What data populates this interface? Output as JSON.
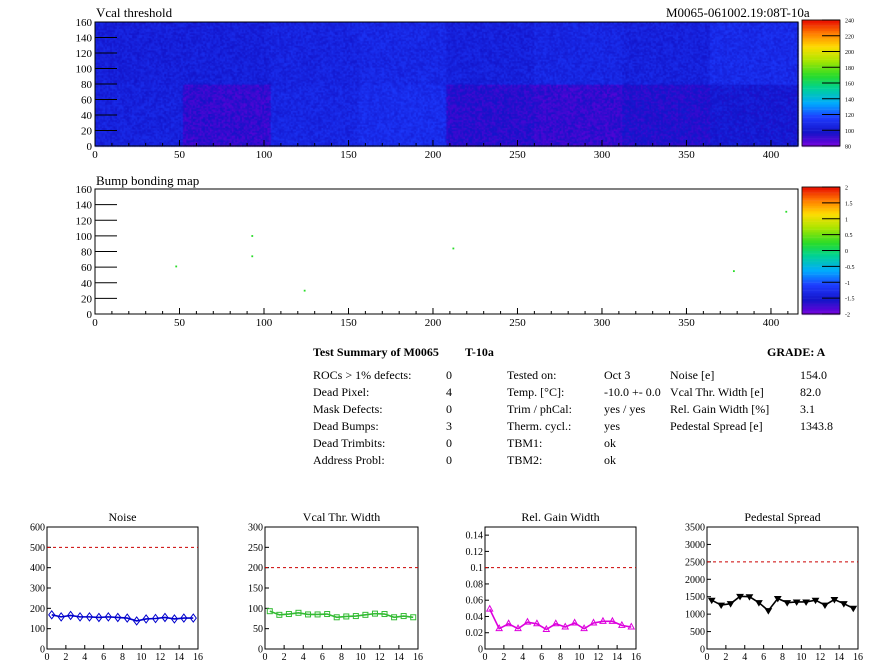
{
  "header": {
    "map1_title": "Vcal threshold",
    "module_id": "M0065-061002.19:08T-10a",
    "map2_title": "Bump bonding map"
  },
  "chart_data": [
    {
      "type": "heatmap",
      "title": "Vcal threshold",
      "xlim": [
        0,
        416
      ],
      "ylim": [
        0,
        160
      ],
      "x_ticks": [
        "0",
        "50",
        "100",
        "150",
        "200",
        "250",
        "300",
        "350",
        "400"
      ],
      "y_ticks": [
        "0",
        "20",
        "40",
        "60",
        "80",
        "100",
        "120",
        "140",
        "160"
      ],
      "z_range": [
        80,
        240
      ],
      "z_ticks": [
        "80",
        "100",
        "120",
        "140",
        "160",
        "180",
        "200",
        "220",
        "240"
      ],
      "dominant_value_range": [
        90,
        130
      ]
    },
    {
      "type": "heatmap",
      "title": "Bump bonding map",
      "xlim": [
        0,
        416
      ],
      "ylim": [
        0,
        160
      ],
      "x_ticks": [
        "0",
        "50",
        "100",
        "150",
        "200",
        "250",
        "300",
        "350",
        "400"
      ],
      "y_ticks": [
        "0",
        "20",
        "40",
        "60",
        "80",
        "100",
        "120",
        "140",
        "160"
      ],
      "z_range": [
        -2,
        2
      ],
      "z_ticks": [
        "-2",
        "-1.5",
        "-1",
        "-0.5",
        "0",
        "0.5",
        "1",
        "1.5",
        "2"
      ],
      "points": [
        {
          "x": 48,
          "y": 61
        },
        {
          "x": 93,
          "y": 100
        },
        {
          "x": 93,
          "y": 74
        },
        {
          "x": 124,
          "y": 30
        },
        {
          "x": 212,
          "y": 84
        },
        {
          "x": 378,
          "y": 55
        },
        {
          "x": 409,
          "y": 131
        }
      ]
    },
    {
      "type": "line",
      "title": "Noise",
      "xlim": [
        0,
        16
      ],
      "ylim": [
        0,
        600
      ],
      "x_ticks": [
        "0",
        "2",
        "4",
        "6",
        "8",
        "10",
        "12",
        "14",
        "16"
      ],
      "y_ticks": [
        "0",
        "100",
        "200",
        "300",
        "400",
        "500",
        "600"
      ],
      "threshold": 500,
      "marker": "diamond",
      "color": "#0000cc",
      "x": [
        0.5,
        1.5,
        2.5,
        3.5,
        4.5,
        5.5,
        6.5,
        7.5,
        8.5,
        9.5,
        10.5,
        11.5,
        12.5,
        13.5,
        14.5,
        15.5
      ],
      "values": [
        168,
        158,
        165,
        158,
        158,
        155,
        158,
        155,
        152,
        138,
        148,
        150,
        155,
        148,
        152,
        152
      ]
    },
    {
      "type": "line",
      "title": "Vcal Thr. Width",
      "xlim": [
        0,
        16
      ],
      "ylim": [
        0,
        300
      ],
      "x_ticks": [
        "0",
        "2",
        "4",
        "6",
        "8",
        "10",
        "12",
        "14",
        "16"
      ],
      "y_ticks": [
        "0",
        "50",
        "100",
        "150",
        "200",
        "250",
        "300"
      ],
      "threshold": 200,
      "marker": "square",
      "color": "#33bb33",
      "x": [
        0.5,
        1.5,
        2.5,
        3.5,
        4.5,
        5.5,
        6.5,
        7.5,
        8.5,
        9.5,
        10.5,
        11.5,
        12.5,
        13.5,
        14.5,
        15.5
      ],
      "values": [
        93,
        84,
        86,
        89,
        85,
        85,
        86,
        78,
        80,
        81,
        84,
        87,
        86,
        78,
        81,
        78
      ]
    },
    {
      "type": "line",
      "title": "Rel. Gain Width",
      "xlim": [
        0,
        16
      ],
      "ylim": [
        0,
        0.15
      ],
      "x_ticks": [
        "0",
        "2",
        "4",
        "6",
        "8",
        "10",
        "12",
        "14",
        "16"
      ],
      "y_ticks": [
        "0",
        "0.02",
        "0.04",
        "0.06",
        "0.08",
        "0.1",
        "0.12",
        "0.14"
      ],
      "threshold": 0.1,
      "marker": "triangle",
      "color": "#dd00dd",
      "x": [
        0.5,
        1.5,
        2.5,
        3.5,
        4.5,
        5.5,
        6.5,
        7.5,
        8.5,
        9.5,
        10.5,
        11.5,
        12.5,
        13.5,
        14.5,
        15.5
      ],
      "values": [
        0.049,
        0.025,
        0.031,
        0.025,
        0.033,
        0.031,
        0.024,
        0.031,
        0.027,
        0.032,
        0.025,
        0.032,
        0.034,
        0.034,
        0.029,
        0.027
      ]
    },
    {
      "type": "line",
      "title": "Pedestal Spread",
      "xlim": [
        0,
        16
      ],
      "ylim": [
        0,
        3500
      ],
      "x_ticks": [
        "0",
        "2",
        "4",
        "6",
        "8",
        "10",
        "12",
        "14",
        "16"
      ],
      "y_ticks": [
        "0",
        "500",
        "1000",
        "1500",
        "2000",
        "2500",
        "3000",
        "3500"
      ],
      "threshold": 2500,
      "marker": "triangle-down",
      "color": "#000000",
      "x": [
        0.5,
        1.5,
        2.5,
        3.5,
        4.5,
        5.5,
        6.5,
        7.5,
        8.5,
        9.5,
        10.5,
        11.5,
        12.5,
        13.5,
        14.5,
        15.5
      ],
      "values": [
        1400,
        1260,
        1300,
        1510,
        1500,
        1330,
        1100,
        1450,
        1330,
        1350,
        1350,
        1400,
        1260,
        1420,
        1300,
        1170
      ]
    }
  ],
  "summary": {
    "title": "Test Summary of M0065",
    "temp_tag": "T-10a",
    "grade": "GRADE:  A",
    "col1": [
      {
        "label": "ROCs > 1% defects:",
        "value": "0"
      },
      {
        "label": "Dead Pixel:",
        "value": "4"
      },
      {
        "label": "Mask Defects:",
        "value": "0"
      },
      {
        "label": "Dead Bumps:",
        "value": "3"
      },
      {
        "label": "Dead Trimbits:",
        "value": "0"
      },
      {
        "label": "Address Probl:",
        "value": "0"
      }
    ],
    "col2": [
      {
        "label": "Tested on:",
        "value": "Oct 3"
      },
      {
        "label": "Temp. [°C]:",
        "value": "-10.0 +- 0.0"
      },
      {
        "label": "Trim / phCal:",
        "value": "yes / yes"
      },
      {
        "label": "Therm. cycl.:",
        "value": "yes"
      },
      {
        "label": "TBM1:",
        "value": "ok"
      },
      {
        "label": "TBM2:",
        "value": "ok"
      }
    ],
    "col3": [
      {
        "label": "Noise [e]",
        "value": "154.0"
      },
      {
        "label": "Vcal Thr. Width [e]",
        "value": "82.0"
      },
      {
        "label": "Rel. Gain Width [%]",
        "value": "3.1"
      },
      {
        "label": "Pedestal Spread [e]",
        "value": "1343.8"
      }
    ]
  }
}
